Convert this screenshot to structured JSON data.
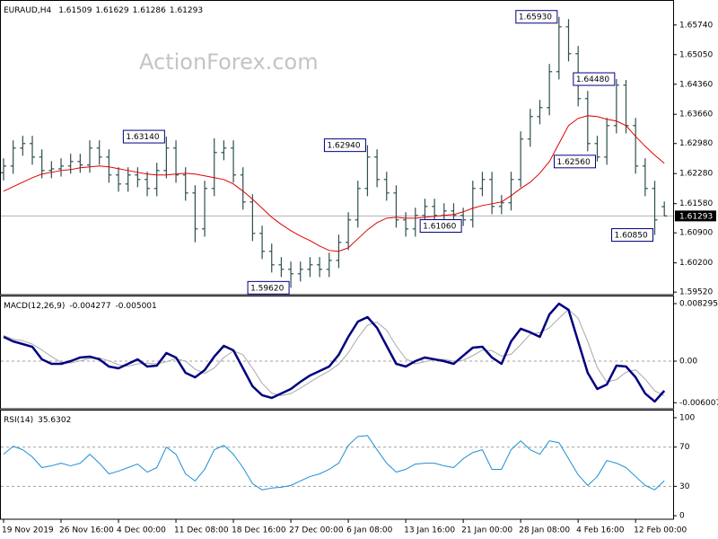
{
  "chart_data": [
    {
      "type": "ohlc",
      "title": "EURAUD,H4",
      "watermark": "ActionForex.com",
      "color": "#2f4f4f",
      "xlim": [
        -0.375,
        69.92
      ],
      "ylim": [
        1.5946,
        1.6628
      ],
      "yticks": [
        {
          "value": 1.6574,
          "label": "1.65740"
        },
        {
          "value": 1.6505,
          "label": "1.65050"
        },
        {
          "value": 1.6436,
          "label": "1.64360"
        },
        {
          "value": 1.6366,
          "label": "1.63660"
        },
        {
          "value": 1.6298,
          "label": "1.62980"
        },
        {
          "value": 1.6228,
          "label": "1.62280"
        },
        {
          "value": 1.6158,
          "label": "1.61580"
        },
        {
          "value": 1.609,
          "label": "1.60900"
        },
        {
          "value": 1.602,
          "label": "1.60200"
        },
        {
          "value": 1.5952,
          "label": "1.59520"
        }
      ],
      "open": [
        1.623,
        1.62456,
        1.62874,
        1.62979,
        1.62665,
        1.62351,
        1.6239,
        1.62456,
        1.6256,
        1.6248,
        1.62874,
        1.62665,
        1.62247,
        1.62037,
        1.62247,
        1.62142,
        1.61933,
        1.62351,
        1.62874,
        1.62247,
        1.61828,
        1.60991,
        1.61933,
        1.6277,
        1.62874,
        1.62247,
        1.61619,
        1.60887,
        1.60469,
        1.60155,
        1.6005,
        1.59946,
        1.6005,
        1.60155,
        1.6005,
        1.60258,
        1.60678,
        1.61201,
        1.61933,
        1.62665,
        1.62142,
        1.61828,
        1.61201,
        1.60991,
        1.61305,
        1.61514,
        1.61305,
        1.6141,
        1.61305,
        1.61201,
        1.61933,
        1.62142,
        1.61514,
        1.616,
        1.62142,
        1.63083,
        1.63607,
        1.63816,
        1.64653,
        1.65698,
        1.65071,
        1.64025,
        1.62979,
        1.62665,
        1.63397,
        1.64339,
        1.63397,
        1.62456,
        1.61933,
        1.61509
      ],
      "high": [
        1.62636,
        1.63054,
        1.63159,
        1.63159,
        1.62845,
        1.6257,
        1.62636,
        1.6274,
        1.6274,
        1.63054,
        1.63054,
        1.62845,
        1.62427,
        1.62427,
        1.62427,
        1.62322,
        1.62531,
        1.6314,
        1.63054,
        1.62427,
        1.62008,
        1.62113,
        1.631,
        1.63054,
        1.63054,
        1.62427,
        1.61799,
        1.61067,
        1.60649,
        1.60335,
        1.6023,
        1.6023,
        1.60335,
        1.60335,
        1.60438,
        1.60858,
        1.61381,
        1.62113,
        1.6294,
        1.62845,
        1.62322,
        1.62008,
        1.61381,
        1.61485,
        1.61694,
        1.61694,
        1.6159,
        1.6159,
        1.61485,
        1.62113,
        1.62322,
        1.62322,
        1.6178,
        1.62322,
        1.63263,
        1.63787,
        1.63996,
        1.64833,
        1.6593,
        1.65878,
        1.65251,
        1.64205,
        1.63159,
        1.63577,
        1.6448,
        1.6446,
        1.63577,
        1.62636,
        1.62113,
        1.61629
      ],
      "low": [
        1.6212,
        1.62276,
        1.62694,
        1.62485,
        1.62171,
        1.62171,
        1.6221,
        1.62276,
        1.623,
        1.623,
        1.62485,
        1.62067,
        1.61857,
        1.61857,
        1.61962,
        1.61753,
        1.61753,
        1.62171,
        1.62067,
        1.61648,
        1.6068,
        1.60811,
        1.61753,
        1.6259,
        1.62067,
        1.61439,
        1.60707,
        1.60289,
        1.59975,
        1.5987,
        1.5962,
        1.59766,
        1.5987,
        1.5987,
        1.5987,
        1.60078,
        1.60498,
        1.61021,
        1.61753,
        1.61962,
        1.61648,
        1.61021,
        1.60811,
        1.60811,
        1.61125,
        1.61125,
        1.61125,
        1.61125,
        1.6106,
        1.61021,
        1.61753,
        1.61334,
        1.61334,
        1.6142,
        1.61962,
        1.62903,
        1.63427,
        1.63636,
        1.64473,
        1.64891,
        1.63845,
        1.62799,
        1.6256,
        1.62485,
        1.63217,
        1.63217,
        1.62276,
        1.61753,
        1.6085,
        1.61286
      ],
      "close": [
        1.62456,
        1.62874,
        1.62979,
        1.62665,
        1.62351,
        1.6239,
        1.62456,
        1.6256,
        1.6248,
        1.62874,
        1.62665,
        1.62247,
        1.62037,
        1.62247,
        1.62142,
        1.61933,
        1.62351,
        1.62874,
        1.62247,
        1.61828,
        1.60991,
        1.61933,
        1.6277,
        1.62874,
        1.62247,
        1.61619,
        1.60887,
        1.60469,
        1.60155,
        1.6005,
        1.59946,
        1.6005,
        1.60155,
        1.6005,
        1.60258,
        1.60678,
        1.61201,
        1.61933,
        1.62665,
        1.62142,
        1.61828,
        1.61201,
        1.60991,
        1.61305,
        1.61514,
        1.61305,
        1.6141,
        1.61305,
        1.61201,
        1.61933,
        1.62142,
        1.61514,
        1.616,
        1.62142,
        1.63083,
        1.63607,
        1.63816,
        1.64653,
        1.65698,
        1.65071,
        1.64025,
        1.62979,
        1.62665,
        1.63397,
        1.64339,
        1.63397,
        1.62456,
        1.61933,
        1.61201,
        1.61293
      ],
      "ma": {
        "color": "#e00000",
        "values": [
          1.6187,
          1.61975,
          1.62079,
          1.62184,
          1.62268,
          1.62309,
          1.62351,
          1.62372,
          1.62414,
          1.62435,
          1.62456,
          1.62435,
          1.62393,
          1.62351,
          1.62309,
          1.62268,
          1.62247,
          1.62247,
          1.62268,
          1.62288,
          1.62268,
          1.62226,
          1.62184,
          1.62142,
          1.62037,
          1.6187,
          1.61682,
          1.61473,
          1.61263,
          1.61096,
          1.6095,
          1.60824,
          1.60719,
          1.60594,
          1.60489,
          1.60469,
          1.60552,
          1.60761,
          1.6097,
          1.61138,
          1.61242,
          1.61263,
          1.61242,
          1.61242,
          1.61263,
          1.61284,
          1.61305,
          1.61326,
          1.61389,
          1.61473,
          1.61535,
          1.61577,
          1.61619,
          1.61765,
          1.61933,
          1.62079,
          1.62288,
          1.6256,
          1.62979,
          1.63397,
          1.63565,
          1.63627,
          1.63607,
          1.63544,
          1.63502,
          1.63397,
          1.63146,
          1.62916,
          1.62707,
          1.62519
        ]
      },
      "annotations": [
        {
          "x": 17,
          "value": 1.6314,
          "label": "1.63140"
        },
        {
          "x": 30,
          "value": 1.5962,
          "label": "1.59620"
        },
        {
          "x": 38,
          "value": 1.6294,
          "label": "1.62940"
        },
        {
          "x": 48,
          "value": 1.6106,
          "label": "1.61060"
        },
        {
          "x": 58,
          "value": 1.6593,
          "label": "1.65930"
        },
        {
          "x": 62,
          "value": 1.6256,
          "label": "1.62560"
        },
        {
          "x": 64,
          "value": 1.6448,
          "label": "1.64480"
        },
        {
          "x": 68,
          "value": 1.6085,
          "label": "1.60850"
        }
      ]
    },
    {
      "type": "line",
      "title": "MACD(12,26,9)",
      "xlim": [
        -0.375,
        69.92
      ],
      "ylim": [
        -0.00687,
        0.0092
      ],
      "yticks": [
        0.008295,
        {
          "value": 0,
          "label": "0.00"
        },
        -0.006007
      ],
      "levels": [
        0
      ],
      "series": [
        {
          "color": "#000080",
          "values": [
            0.0035,
            0.00285,
            0.00246,
            0.00207,
            0.00026,
            -0.00039,
            -0.00039,
            0,
            0.00052,
            0.00065,
            0.00026,
            -0.00078,
            -0.00104,
            -0.00039,
            0.00026,
            -0.00078,
            -0.00065,
            0.00117,
            0.00052,
            -0.00168,
            -0.00233,
            -0.0013,
            0.00065,
            0.0022,
            0.00156,
            -0.00104,
            -0.00363,
            -0.00492,
            -0.00531,
            -0.00467,
            -0.00402,
            -0.00298,
            -0.00207,
            -0.00143,
            -0.00078,
            0.00091,
            0.0035,
            0.0057,
            0.00635,
            0.0048,
            0.0022,
            -0.00039,
            -0.00078,
            0,
            0.00052,
            0.00026,
            0,
            -0.00039,
            0.00078,
            0.00194,
            0.00207,
            0.00052,
            -0.00039,
            0.00285,
            0.00467,
            0.00415,
            0.0035,
            0.00674,
            0.00829,
            0.00739,
            0.00285,
            -0.00168,
            -0.00402,
            -0.00337,
            -0.00065,
            -0.00078,
            -0.00233,
            -0.00467,
            -0.00583,
            -0.004277
          ]
        },
        {
          "color": "#a9a9a9",
          "values": [
            0.0037,
            0.00318,
            0.00294,
            0.00246,
            0.0016,
            0.00065,
            -0.00017,
            -0.00026,
            4e-05,
            0.00039,
            0.00048,
            4e-05,
            -0.00052,
            -0.00074,
            -0.00039,
            -0.0003,
            -0.00039,
            -9e-05,
            0.00035,
            0,
            -0.00116,
            -0.00177,
            -0.00099,
            0.00052,
            0.00147,
            0.00091,
            -0.00104,
            -0.0032,
            -0.00462,
            -0.00497,
            -0.00467,
            -0.00389,
            -0.00302,
            -0.00216,
            -0.00143,
            -0.00043,
            0.00121,
            0.00337,
            0.00518,
            0.00562,
            0.00445,
            0.0022,
            0.00034,
            -0.00039,
            -9e-05,
            0.00026,
            0.00026,
            -4e-05,
            0.00013,
            0.00078,
            0.0016,
            0.00151,
            0.00073,
            0.00099,
            0.00238,
            0.00389,
            0.00411,
            0.0048,
            0.00618,
            0.00747,
            0.00618,
            0.00285,
            -0.00095,
            -0.00302,
            -0.00268,
            -0.0016,
            -0.00125,
            -0.00259,
            -0.00428,
            -0.005001
          ]
        }
      ]
    },
    {
      "type": "line",
      "title": "RSI(14)",
      "xlim": [
        -0.375,
        69.92
      ],
      "ylim": [
        -3.6,
        106.4
      ],
      "yticks": [
        100,
        70,
        30,
        0
      ],
      "levels": [
        70,
        30
      ],
      "xticks": [
        {
          "value": 0,
          "label": "19 Nov 2019"
        },
        {
          "value": 6,
          "label": "26 Nov 16:00"
        },
        {
          "value": 12,
          "label": "4 Dec 00:00"
        },
        {
          "value": 18,
          "label": "11 Dec 08:00"
        },
        {
          "value": 24,
          "label": "18 Dec 16:00"
        },
        {
          "value": 30,
          "label": "27 Dec 00:00"
        },
        {
          "value": 36,
          "label": "6 Jan 08:00"
        },
        {
          "value": 42,
          "label": "13 Jan 16:00"
        },
        {
          "value": 48,
          "label": "21 Jan 00:00"
        },
        {
          "value": 54,
          "label": "28 Jan 08:00"
        },
        {
          "value": 60,
          "label": "4 Feb 16:00"
        },
        {
          "value": 66,
          "label": "12 Feb 00:00"
        }
      ],
      "series": [
        {
          "color": "#1e8fd6",
          "values": [
            62.7,
            70.9,
            67.3,
            60,
            49.1,
            50.9,
            53.6,
            50.9,
            53.6,
            62.7,
            53.6,
            42.7,
            45.5,
            49.1,
            52.7,
            44.5,
            49.1,
            70,
            62.7,
            42.7,
            35.5,
            47.3,
            67.3,
            71.8,
            62.7,
            49.1,
            32.7,
            26.4,
            28.2,
            29.1,
            30.9,
            35.5,
            40,
            42.7,
            47.3,
            53.6,
            71.8,
            80.9,
            81.8,
            67.3,
            53.6,
            44.5,
            47.3,
            52.7,
            53.6,
            53.6,
            50.9,
            49.1,
            58.2,
            64.5,
            67.3,
            47.3,
            47.3,
            67.3,
            76.4,
            67.3,
            62.7,
            76.4,
            74.5,
            58.2,
            41.8,
            30.9,
            40,
            56.4,
            53.6,
            49.1,
            40,
            30.9,
            26.4,
            35.6302
          ]
        }
      ]
    }
  ]
}
